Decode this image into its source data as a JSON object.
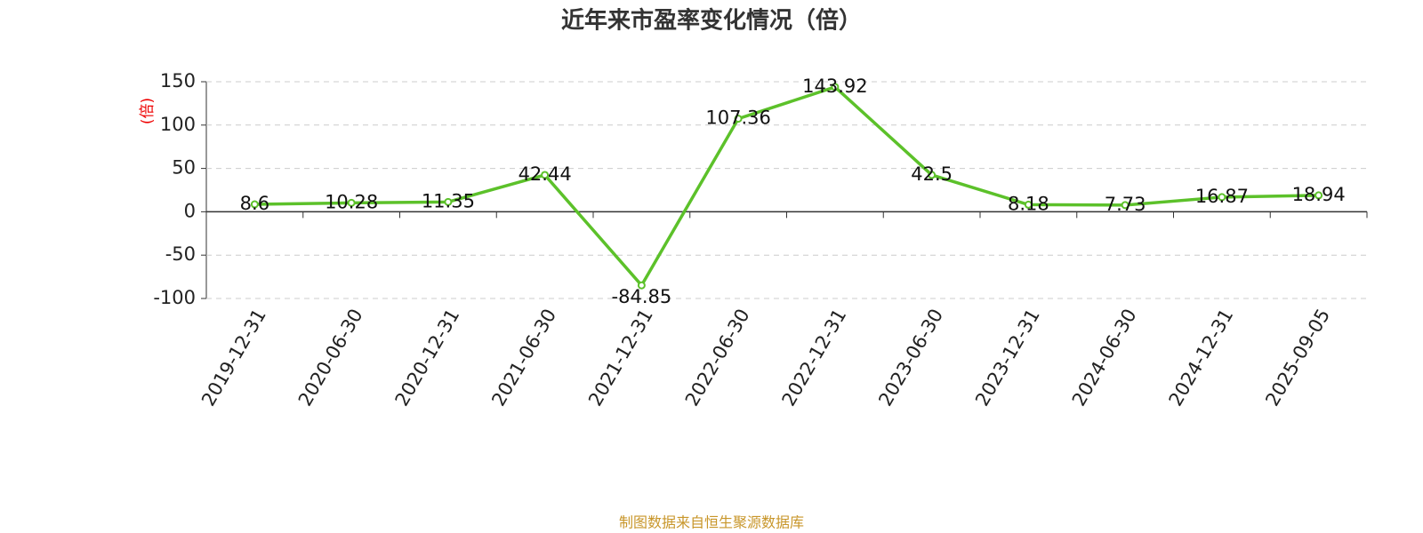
{
  "chart_data": {
    "type": "line",
    "title": "近年来市盈率变化情况（倍）",
    "y_label": "(倍)",
    "categories": [
      "2019-12-31",
      "2020-06-30",
      "2020-12-31",
      "2021-06-30",
      "2021-12-31",
      "2022-06-30",
      "2022-12-31",
      "2023-06-30",
      "2023-12-31",
      "2024-06-30",
      "2024-12-31",
      "2025-09-05"
    ],
    "series": [
      {
        "name": "市盈率",
        "color": "#5cc12a",
        "values": [
          8.6,
          10.28,
          11.35,
          42.44,
          -84.85,
          107.36,
          143.92,
          42.5,
          8.18,
          7.73,
          16.87,
          18.94
        ]
      }
    ],
    "ylim": [
      -100,
      150
    ],
    "yticks": [
      150,
      100,
      50,
      0,
      -50,
      -100
    ],
    "grid": true,
    "source": "制图数据来自恒生聚源数据库"
  }
}
